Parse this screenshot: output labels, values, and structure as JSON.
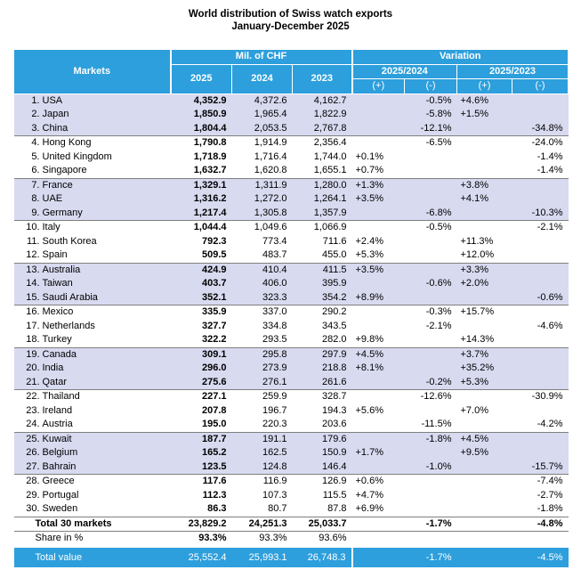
{
  "title": {
    "line1": "World distribution of Swiss watch exports",
    "line2": "January-December 2025"
  },
  "header": {
    "markets": "Markets",
    "mil_chf": "Mil. of CHF",
    "variation": "Variation",
    "y2025": "2025",
    "y2024": "2024",
    "y2023": "2023",
    "var_2025_2024": "2025/2024",
    "var_2025_2023": "2025/2023",
    "plus": "(+)",
    "minus": "(-)"
  },
  "rows": [
    {
      "num": "1.",
      "market": "USA",
      "v2025": "4,352.9",
      "v2024": "4,372.6",
      "v2023": "4,162.7",
      "a_plus": "",
      "a_minus": "-0.5%",
      "b_plus": "+4.6%",
      "b_minus": ""
    },
    {
      "num": "2.",
      "market": "Japan",
      "v2025": "1,850.9",
      "v2024": "1,965.4",
      "v2023": "1,822.9",
      "a_plus": "",
      "a_minus": "-5.8%",
      "b_plus": "+1.5%",
      "b_minus": ""
    },
    {
      "num": "3.",
      "market": "China",
      "v2025": "1,804.4",
      "v2024": "2,053.5",
      "v2023": "2,767.8",
      "a_plus": "",
      "a_minus": "-12.1%",
      "b_plus": "",
      "b_minus": "-34.8%"
    },
    {
      "num": "4.",
      "market": "Hong Kong",
      "v2025": "1,790.8",
      "v2024": "1,914.9",
      "v2023": "2,356.4",
      "a_plus": "",
      "a_minus": "-6.5%",
      "b_plus": "",
      "b_minus": "-24.0%"
    },
    {
      "num": "5.",
      "market": "United Kingdom",
      "v2025": "1,718.9",
      "v2024": "1,716.4",
      "v2023": "1,744.0",
      "a_plus": "+0.1%",
      "a_minus": "",
      "b_plus": "",
      "b_minus": "-1.4%"
    },
    {
      "num": "6.",
      "market": "Singapore",
      "v2025": "1,632.7",
      "v2024": "1,620.8",
      "v2023": "1,655.1",
      "a_plus": "+0.7%",
      "a_minus": "",
      "b_plus": "",
      "b_minus": "-1.4%"
    },
    {
      "num": "7.",
      "market": "France",
      "v2025": "1,329.1",
      "v2024": "1,311.9",
      "v2023": "1,280.0",
      "a_plus": "+1.3%",
      "a_minus": "",
      "b_plus": "+3.8%",
      "b_minus": ""
    },
    {
      "num": "8.",
      "market": "UAE",
      "v2025": "1,316.2",
      "v2024": "1,272.0",
      "v2023": "1,264.1",
      "a_plus": "+3.5%",
      "a_minus": "",
      "b_plus": "+4.1%",
      "b_minus": ""
    },
    {
      "num": "9.",
      "market": "Germany",
      "v2025": "1,217.4",
      "v2024": "1,305.8",
      "v2023": "1,357.9",
      "a_plus": "",
      "a_minus": "-6.8%",
      "b_plus": "",
      "b_minus": "-10.3%"
    },
    {
      "num": "10.",
      "market": "Italy",
      "v2025": "1,044.4",
      "v2024": "1,049.6",
      "v2023": "1,066.9",
      "a_plus": "",
      "a_minus": "-0.5%",
      "b_plus": "",
      "b_minus": "-2.1%"
    },
    {
      "num": "11.",
      "market": "South Korea",
      "v2025": "792.3",
      "v2024": "773.4",
      "v2023": "711.6",
      "a_plus": "+2.4%",
      "a_minus": "",
      "b_plus": "+11.3%",
      "b_minus": ""
    },
    {
      "num": "12.",
      "market": "Spain",
      "v2025": "509.5",
      "v2024": "483.7",
      "v2023": "455.0",
      "a_plus": "+5.3%",
      "a_minus": "",
      "b_plus": "+12.0%",
      "b_minus": ""
    },
    {
      "num": "13.",
      "market": "Australia",
      "v2025": "424.9",
      "v2024": "410.4",
      "v2023": "411.5",
      "a_plus": "+3.5%",
      "a_minus": "",
      "b_plus": "+3.3%",
      "b_minus": ""
    },
    {
      "num": "14.",
      "market": "Taiwan",
      "v2025": "403.7",
      "v2024": "406.0",
      "v2023": "395.9",
      "a_plus": "",
      "a_minus": "-0.6%",
      "b_plus": "+2.0%",
      "b_minus": ""
    },
    {
      "num": "15.",
      "market": "Saudi Arabia",
      "v2025": "352.1",
      "v2024": "323.3",
      "v2023": "354.2",
      "a_plus": "+8.9%",
      "a_minus": "",
      "b_plus": "",
      "b_minus": "-0.6%"
    },
    {
      "num": "16.",
      "market": "Mexico",
      "v2025": "335.9",
      "v2024": "337.0",
      "v2023": "290.2",
      "a_plus": "",
      "a_minus": "-0.3%",
      "b_plus": "+15.7%",
      "b_minus": ""
    },
    {
      "num": "17.",
      "market": "Netherlands",
      "v2025": "327.7",
      "v2024": "334.8",
      "v2023": "343.5",
      "a_plus": "",
      "a_minus": "-2.1%",
      "b_plus": "",
      "b_minus": "-4.6%"
    },
    {
      "num": "18.",
      "market": "Turkey",
      "v2025": "322.2",
      "v2024": "293.5",
      "v2023": "282.0",
      "a_plus": "+9.8%",
      "a_minus": "",
      "b_plus": "+14.3%",
      "b_minus": ""
    },
    {
      "num": "19.",
      "market": "Canada",
      "v2025": "309.1",
      "v2024": "295.8",
      "v2023": "297.9",
      "a_plus": "+4.5%",
      "a_minus": "",
      "b_plus": "+3.7%",
      "b_minus": ""
    },
    {
      "num": "20.",
      "market": "India",
      "v2025": "296.0",
      "v2024": "273.9",
      "v2023": "218.8",
      "a_plus": "+8.1%",
      "a_minus": "",
      "b_plus": "+35.2%",
      "b_minus": ""
    },
    {
      "num": "21.",
      "market": "Qatar",
      "v2025": "275.6",
      "v2024": "276.1",
      "v2023": "261.6",
      "a_plus": "",
      "a_minus": "-0.2%",
      "b_plus": "+5.3%",
      "b_minus": ""
    },
    {
      "num": "22.",
      "market": "Thailand",
      "v2025": "227.1",
      "v2024": "259.9",
      "v2023": "328.7",
      "a_plus": "",
      "a_minus": "-12.6%",
      "b_plus": "",
      "b_minus": "-30.9%"
    },
    {
      "num": "23.",
      "market": "Ireland",
      "v2025": "207.8",
      "v2024": "196.7",
      "v2023": "194.3",
      "a_plus": "+5.6%",
      "a_minus": "",
      "b_plus": "+7.0%",
      "b_minus": ""
    },
    {
      "num": "24.",
      "market": "Austria",
      "v2025": "195.0",
      "v2024": "220.3",
      "v2023": "203.6",
      "a_plus": "",
      "a_minus": "-11.5%",
      "b_plus": "",
      "b_minus": "-4.2%"
    },
    {
      "num": "25.",
      "market": "Kuwait",
      "v2025": "187.7",
      "v2024": "191.1",
      "v2023": "179.6",
      "a_plus": "",
      "a_minus": "-1.8%",
      "b_plus": "+4.5%",
      "b_minus": ""
    },
    {
      "num": "26.",
      "market": "Belgium",
      "v2025": "165.2",
      "v2024": "162.5",
      "v2023": "150.9",
      "a_plus": "+1.7%",
      "a_minus": "",
      "b_plus": "+9.5%",
      "b_minus": ""
    },
    {
      "num": "27.",
      "market": "Bahrain",
      "v2025": "123.5",
      "v2024": "124.8",
      "v2023": "146.4",
      "a_plus": "",
      "a_minus": "-1.0%",
      "b_plus": "",
      "b_minus": "-15.7%"
    },
    {
      "num": "28.",
      "market": "Greece",
      "v2025": "117.6",
      "v2024": "116.9",
      "v2023": "126.9",
      "a_plus": "+0.6%",
      "a_minus": "",
      "b_plus": "",
      "b_minus": "-7.4%"
    },
    {
      "num": "29.",
      "market": "Portugal",
      "v2025": "112.3",
      "v2024": "107.3",
      "v2023": "115.5",
      "a_plus": "+4.7%",
      "a_minus": "",
      "b_plus": "",
      "b_minus": "-2.7%"
    },
    {
      "num": "30.",
      "market": "Sweden",
      "v2025": "86.3",
      "v2024": "80.7",
      "v2023": "87.8",
      "a_plus": "+6.9%",
      "a_minus": "",
      "b_plus": "",
      "b_minus": "-1.8%"
    }
  ],
  "total30": {
    "label": "Total 30 markets",
    "v2025": "23,829.2",
    "v2024": "24,251.3",
    "v2023": "25,033.7",
    "a_minus": "-1.7%",
    "b_minus": "-4.8%"
  },
  "share": {
    "label": "Share in %",
    "v2025": "93.3%",
    "v2024": "93.3%",
    "v2023": "93.6%"
  },
  "total": {
    "label": "Total value",
    "v2025": "25,552.4",
    "v2024": "25,993.1",
    "v2023": "26,748.3",
    "a_minus": "-1.7%",
    "b_minus": "-4.5%"
  },
  "colors": {
    "header_blue": "#2d9fdc",
    "band": "#d8daf0"
  }
}
